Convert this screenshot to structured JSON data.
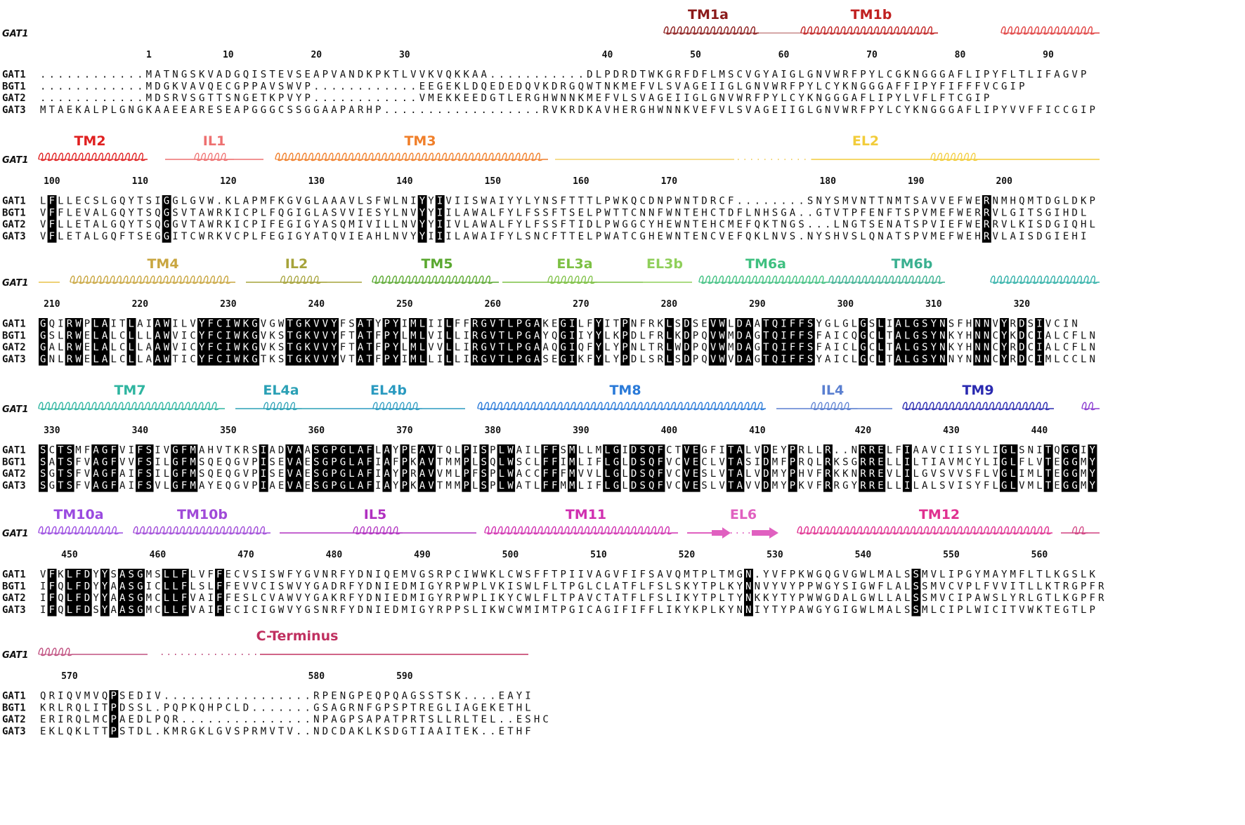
{
  "names": [
    "GAT1",
    "BGT1",
    "GAT2",
    "GAT3"
  ],
  "header_name": "GAT1",
  "colors": {
    "identical_bg": "#000000",
    "identical_fg": "#ffffff",
    "text": "#111111"
  },
  "blocks": [
    {
      "rows": [
        "............MATNGSKVADGQISTEVSEAPVANDKPKTLVVKVQKKAA...........DLPDRDTWKGRFDFLMSCVGYAIGLGNVWRFPYLCGKNGGGAFLIPYFLTLIFAGVP",
        "............MDGKVAVQECGPPAVSWVP............EEGEKLDQEDEDQVKDRGQWTNKMEFVLSVAGEIIGLGNVWRFPYLCYKNGGGAFFIPYFIFFFVCGIP",
        "............MDSRVSGTTSNGETKPVYP............VMEKKEEDGTLERGHWNNKMEFVLSVAGEIIGLGNVWRFPYLCYKNGGGAFLIPYLVFLFTCGIP",
        "MTAEKALPLGNGKAAEEARESEAPGGGCSSGGAAPARHP..................RVKRDKAVHERGHWNNKVEFVLSVAGEIIGLGNVWRFPYLCYKNGGGAFLIPYVVFFICCGIP"
      ],
      "ruler": [
        {
          "n": "1",
          "col": 13
        },
        {
          "n": "10",
          "col": 22
        },
        {
          "n": "20",
          "col": 32
        },
        {
          "n": "30",
          "col": 42
        },
        {
          "n": "40",
          "col": 65
        },
        {
          "n": "50",
          "col": 75
        },
        {
          "n": "60",
          "col": 85
        },
        {
          "n": "70",
          "col": 95
        },
        {
          "n": "80",
          "col": 105
        },
        {
          "n": "90",
          "col": 115
        }
      ],
      "features": [
        {
          "label": "TM1a",
          "type": "helix",
          "color": "#8b1a1a",
          "x0": 945,
          "x1": 1080,
          "label_x": 1008
        },
        {
          "label": "",
          "type": "line",
          "color": "#c98a8a",
          "x0": 1080,
          "x1": 1140
        },
        {
          "label": "TM1b",
          "type": "helix",
          "color": "#c02020",
          "x0": 1140,
          "x1": 1335,
          "label_x": 1240
        },
        {
          "label": "",
          "type": "helix",
          "color": "#e04040",
          "x0": 1425,
          "x1": 1565
        }
      ]
    },
    {
      "rows": [
        "LFLLECSLGQYTSIGGLGVW.KLAPMFKGVGLAAAVLSFWLNIYYIVIISWAIYYLYNSFTTTLPWKQCDNPWNTDRCF........SNYSMVNTTNMTSAVVEFWERNMHQMTDGLDKP",
        "VFFLEVALGQYTSQGSVTAWRKICPLFQGIGLASVVIESYLNVYYIILAWALFYLFSSFTSELPWTTCNNFWNTEHCTDFLNHSGA..GTVTPFENFTSPVMEFWERRVLGITSGIHDL",
        "VFLLETALGQYTSQGGVTAWRKICPIFEGIGYASQMIVILLNVYYIIVLAWALFYLFSSFTIDLPWGGCYHEWNTEHCMEFQKTNGS...LNGTSENATSPVIEFWERRVLKISDGIQHL",
        "VFLETALGQFTSEGGITCWRKVCPLFEGIGYATQVIEAHLNVYYIIILAWAIFYLSNCFTTELPWATCGHEWNTENCVEFQKLNVS.NYSHVSLQNATSPVMEFWEHRVLAISDGIEHI"
      ],
      "ruler": [
        {
          "n": "100",
          "col": 2
        },
        {
          "n": "110",
          "col": 12
        },
        {
          "n": "120",
          "col": 22
        },
        {
          "n": "130",
          "col": 32
        },
        {
          "n": "140",
          "col": 42
        },
        {
          "n": "150",
          "col": 52
        },
        {
          "n": "160",
          "col": 62
        },
        {
          "n": "170",
          "col": 72
        },
        {
          "n": "180",
          "col": 90
        },
        {
          "n": "190",
          "col": 100
        },
        {
          "n": "200",
          "col": 110
        }
      ],
      "features": [
        {
          "label": "TM2",
          "type": "helix",
          "color": "#e02020",
          "x0": 55,
          "x1": 210,
          "label_x": 128
        },
        {
          "label": "IL1",
          "type": "helix-line",
          "color": "#ee7070",
          "x0": 235,
          "x1": 375,
          "label_x": 305
        },
        {
          "label": "TM3",
          "type": "helix",
          "color": "#f07f2a",
          "x0": 392,
          "x1": 780,
          "label_x": 598
        },
        {
          "label": "",
          "type": "line",
          "color": "#f3d36b",
          "x0": 790,
          "x1": 1045
        },
        {
          "label": "",
          "type": "dots",
          "color": "#f3d36b",
          "x0": 1050,
          "x1": 1155
        },
        {
          "label": "EL2",
          "type": "line-helix",
          "color": "#f2cc3a",
          "x0": 1155,
          "x1": 1565,
          "label_x": 1232
        }
      ]
    },
    {
      "rows": [
        "GQIRWPLAITLAIAWILVYFCIWKGVGWTGKVVYFSATYPYIMLIILFFRGVTLPGAKEGILFYITPNFRKLSDSEVWLDAATQIFFSYGLGLGSLIALGSYNSFHNNVYRDSIVCIN",
        "GSLRWELALCLLLAWVICYFCIWKGVKSTGKVVYFTATFPYLMLVILLIRGVTLPGAYQGIIYYLKPDLFRLKDPQVWMDAGTQIFFSFAICQGCLTALGSYNKYHNNCYKDCIALCFLN",
        "GALRWELALCLLAAWVICYFCIWKGVKSTGKVVYFTATFPYLMLVVLLIRGVTLPGAAQGIQFYLYPNLTRLWDPQVWMDAGTQIFFSFAICLGCLTALGSYNKYHNNCYRDCIALCFLN",
        "GNLRWELALCLLAAWTICYFCIWKGTKSTGKVVYVTATFPYIMLLILLIRGVTLPGASEGIKFYLYPDLSRLSDPQVWVDAGTQIFFSYAICLGCLTALGSYNNYNNNCYRDCIMLCCLN"
      ],
      "ruler": [
        {
          "n": "210",
          "col": 2
        },
        {
          "n": "220",
          "col": 12
        },
        {
          "n": "230",
          "col": 22
        },
        {
          "n": "240",
          "col": 32
        },
        {
          "n": "250",
          "col": 42
        },
        {
          "n": "260",
          "col": 52
        },
        {
          "n": "270",
          "col": 62
        },
        {
          "n": "280",
          "col": 72
        },
        {
          "n": "290",
          "col": 82
        },
        {
          "n": "300",
          "col": 92
        },
        {
          "n": "310",
          "col": 102
        },
        {
          "n": "320",
          "col": 112
        }
      ],
      "features": [
        {
          "label": "",
          "type": "line",
          "color": "#e8c24a",
          "x0": 55,
          "x1": 85
        },
        {
          "label": "TM4",
          "type": "helix",
          "color": "#c9a640",
          "x0": 100,
          "x1": 335,
          "label_x": 232
        },
        {
          "label": "IL2",
          "type": "helix-line",
          "color": "#a6a33a",
          "x0": 350,
          "x1": 515,
          "label_x": 422
        },
        {
          "label": "TM5",
          "type": "helix",
          "color": "#5aa830",
          "x0": 530,
          "x1": 710,
          "label_x": 622
        },
        {
          "label": "EL3a",
          "type": "line-helix",
          "color": "#7cc043",
          "x0": 715,
          "x1": 915,
          "label_x": 818
        },
        {
          "label": "EL3b",
          "type": "line",
          "color": "#8fcf5a",
          "x0": 915,
          "x1": 985,
          "label_x": 946
        },
        {
          "label": "TM6a",
          "type": "helix",
          "color": "#3fc080",
          "x0": 995,
          "x1": 1180,
          "label_x": 1090
        },
        {
          "label": "TM6b",
          "type": "helix",
          "color": "#3ab090",
          "x0": 1180,
          "x1": 1345,
          "label_x": 1298
        },
        {
          "label": "",
          "type": "helix",
          "color": "#30b0a8",
          "x0": 1410,
          "x1": 1565
        }
      ]
    },
    {
      "rows": [
        "SCTSMFAGFVIFSIVGFMAHVTKRSIADVAASGPGLAFLAYPEAVTQLPISPLWAILFFSMLLMLGIDSQFCTVEGFITALVDEYPRLLR..NRRELFIAAVCIISYLIGLSNITQGGIY",
        "SATSFVAGFVVFSILGFMSQEQGVPISEVAESGPGLAFIAFPKAVTMMPLSQLWSCLFFIMLIFLGLDSQFVCVECLVTASIDMFPRQLRKSGRRELLILTIAVMCYLIGLFLVTEGGMY",
        "SGTSFVAGFAIFSILGFMSQEQGVPISEVAESGPGLAFIAYPRAVVMLPFSPLWACCFFFMVVLLGLDSQFVCVESLVTALVDMYPHVFRKKNRREVLILGVSVVSFLVGLIMLTEGGMY",
        "SGTSFVAGFAIFSVLGFMAYEQGVPIAEVAESGPGLAFIAYPKAVTMMPLSPLWATLFFMMLIFLGLDSQFVCVESLVTAVVDMYPKVFRRGYRRELLILALSVISYFLGLVMLTEGGMY"
      ],
      "ruler": [
        {
          "n": "330",
          "col": 2
        },
        {
          "n": "340",
          "col": 12
        },
        {
          "n": "350",
          "col": 22
        },
        {
          "n": "360",
          "col": 32
        },
        {
          "n": "370",
          "col": 42
        },
        {
          "n": "380",
          "col": 52
        },
        {
          "n": "390",
          "col": 62
        },
        {
          "n": "400",
          "col": 72
        },
        {
          "n": "410",
          "col": 82
        },
        {
          "n": "420",
          "col": 94
        },
        {
          "n": "430",
          "col": 104
        },
        {
          "n": "440",
          "col": 114
        }
      ],
      "features": [
        {
          "label": "TM7",
          "type": "helix",
          "color": "#2fb5a0",
          "x0": 55,
          "x1": 320,
          "label_x": 185
        },
        {
          "label": "EL4a",
          "type": "line-helix",
          "color": "#2aa0b5",
          "x0": 335,
          "x1": 470,
          "label_x": 400
        },
        {
          "label": "EL4b",
          "type": "helix-line",
          "color": "#2a9ac0",
          "x0": 470,
          "x1": 662,
          "label_x": 553
        },
        {
          "label": "TM8",
          "type": "helix",
          "color": "#2a7ad8",
          "x0": 680,
          "x1": 1090,
          "label_x": 890
        },
        {
          "label": "IL4",
          "type": "helix-line",
          "color": "#5a7fd0",
          "x0": 1105,
          "x1": 1270,
          "label_x": 1185
        },
        {
          "label": "TM9",
          "type": "helix",
          "color": "#2a2ab0",
          "x0": 1285,
          "x1": 1500,
          "label_x": 1392
        },
        {
          "label": "",
          "type": "helix",
          "color": "#8a3ad0",
          "x0": 1540,
          "x1": 1565
        }
      ]
    },
    {
      "rows": [
        "VFKLFDYYSASGMSLLFLVFFECVSISWFYGVNRFYDNIQEMVGSRPCIWWKLCWSFFTPIIVAGVFIFSAVQMTPLTMGN.YVFPKWGQGVGWLMALSSMVLIPGYMAYMFLTLKGSLK",
        "IFQLFDYYAASGICLLFLSLFFEVVCISWVYGADRFYDNIEDMIGYRPWPLVKISWLFLTPGLCLATFLFSLSKYTPLKYNNVYVYPPWGYSIGWFLALSSMVCVPLFVVITLLKTRGPFR",
        "IFQLFDYYAASGMCLLFVAIFFESLCVAWVYGAKRFYDNIEDMIGYRPWPLIKYCWLFLTPAVCTATFLFSLIKYTPLTYNKKYTYPWWGDALGWLLALSSMVCIPAWSLYRLGTLKGPFR",
        "IFQLFDSYAASGMCLLFVAIFECICIGWVYGSNRFYDNIEDMIGYRPPSLIKWCWMIMTPGICAGIFIFFLIKYKPLKYNNIYTYPAWGYGIGWLMALSSMLCIPLWICITVWKTEGTLP"
      ],
      "ruler": [
        {
          "n": "450",
          "col": 4
        },
        {
          "n": "460",
          "col": 14
        },
        {
          "n": "470",
          "col": 24
        },
        {
          "n": "480",
          "col": 34
        },
        {
          "n": "490",
          "col": 44
        },
        {
          "n": "500",
          "col": 54
        },
        {
          "n": "510",
          "col": 64
        },
        {
          "n": "520",
          "col": 74
        },
        {
          "n": "530",
          "col": 84
        },
        {
          "n": "540",
          "col": 94
        },
        {
          "n": "550",
          "col": 104
        },
        {
          "n": "560",
          "col": 114
        }
      ],
      "features": [
        {
          "label": "TM10a",
          "type": "helix",
          "color": "#9a4ae0",
          "x0": 55,
          "x1": 175,
          "label_x": 112
        },
        {
          "label": "TM10b",
          "type": "helix",
          "color": "#a04ad8",
          "x0": 190,
          "x1": 385,
          "label_x": 288
        },
        {
          "label": "IL5",
          "type": "line-helix",
          "color": "#b030c0",
          "x0": 398,
          "x1": 678,
          "label_x": 534
        },
        {
          "label": "TM11",
          "type": "helix",
          "color": "#d030b0",
          "x0": 690,
          "x1": 965,
          "label_x": 834
        },
        {
          "label": "EL6",
          "type": "arrows",
          "color": "#e060c0",
          "x0": 978,
          "x1": 1110,
          "label_x": 1058
        },
        {
          "label": "TM12",
          "type": "helix",
          "color": "#e03090",
          "x0": 1135,
          "x1": 1498,
          "label_x": 1337
        },
        {
          "label": "",
          "type": "helix-line",
          "color": "#d04080",
          "x0": 1510,
          "x1": 1565
        }
      ]
    },
    {
      "rows": [
        "QRIQVMVQPSEDIV.................RPENGPEQPQAGSSTSK....EAYI",
        "KRLRQLITPDSSL.PQPKQHPCLD.......GSAGRNFGPSPTREGLIAGEKETHL",
        "ERIRQLMCPAEDLPQR...............NPAGPSAPATPRTSLLRLTEL..ESHC",
        "EKLQKLTTPSTDL.KMRGKLGVSPRMVTV..NDCDAKLKSDGTIAAITEK..ETHF"
      ],
      "ruler": [
        {
          "n": "570",
          "col": 4
        },
        {
          "n": "580",
          "col": 32
        },
        {
          "n": "590",
          "col": 42
        }
      ],
      "features": [
        {
          "label": "",
          "type": "helix",
          "color": "#c05080",
          "x0": 55,
          "x1": 105
        },
        {
          "label": "",
          "type": "line",
          "color": "#c05080",
          "x0": 105,
          "x1": 210
        },
        {
          "label": "",
          "type": "dots",
          "color": "#c05080",
          "x0": 230,
          "x1": 370
        },
        {
          "label": "C-Terminus",
          "type": "line",
          "color": "#c03060",
          "x0": 370,
          "x1": 752,
          "label_x": 423
        }
      ]
    }
  ]
}
